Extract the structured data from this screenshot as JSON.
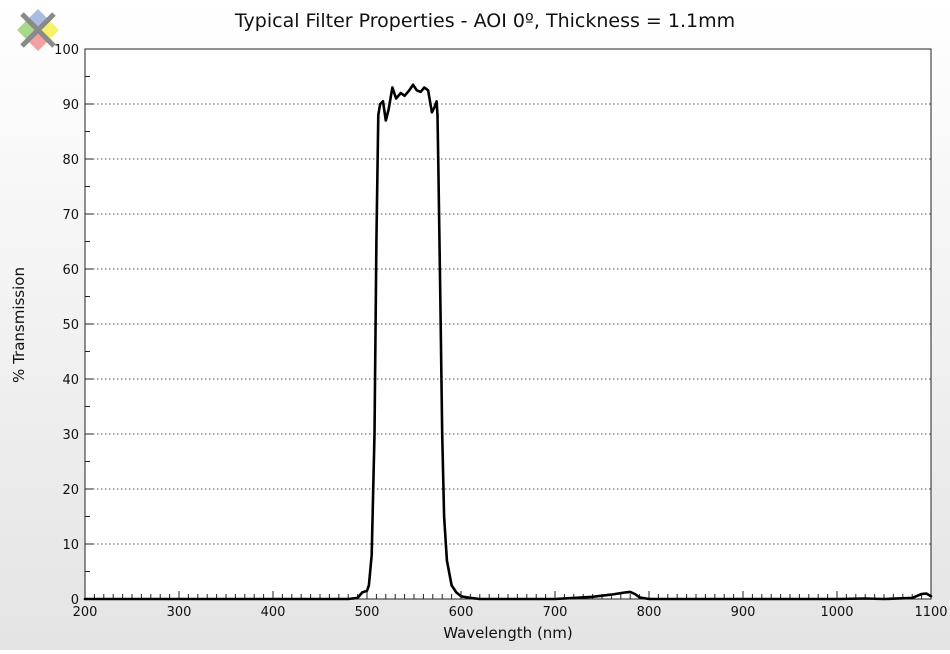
{
  "chart_data": {
    "type": "line",
    "title": "Typical Filter Properties - AOI 0º, Thickness = 1.1mm",
    "xlabel": "Wavelength (nm)",
    "ylabel": "% Transmission",
    "xlim": [
      200,
      1100
    ],
    "ylim": [
      0,
      100
    ],
    "x_ticks": [
      200,
      300,
      400,
      500,
      600,
      700,
      800,
      900,
      1000,
      1100
    ],
    "y_ticks": [
      0,
      10,
      20,
      30,
      40,
      50,
      60,
      70,
      80,
      90,
      100
    ],
    "x_minor_step": 10,
    "y_minor_step": 5,
    "grid": "horizontal-dotted",
    "background": "gradient-white-to-gray",
    "series": [
      {
        "color": "#000000",
        "points": [
          [
            200,
            0
          ],
          [
            480,
            0
          ],
          [
            490,
            0.2
          ],
          [
            495,
            1.2
          ],
          [
            500,
            1.5
          ],
          [
            502,
            2.5
          ],
          [
            505,
            8
          ],
          [
            508,
            30
          ],
          [
            510,
            65
          ],
          [
            512,
            88
          ],
          [
            514,
            90
          ],
          [
            517,
            90.5
          ],
          [
            520,
            87
          ],
          [
            523,
            89
          ],
          [
            527,
            93
          ],
          [
            531,
            91
          ],
          [
            536,
            92
          ],
          [
            540,
            91.5
          ],
          [
            545,
            92.5
          ],
          [
            549,
            93.5
          ],
          [
            553,
            92.5
          ],
          [
            557,
            92.2
          ],
          [
            561,
            93
          ],
          [
            565,
            92.5
          ],
          [
            569,
            88.5
          ],
          [
            572,
            89.5
          ],
          [
            574,
            90.5
          ],
          [
            575,
            88
          ],
          [
            576,
            78
          ],
          [
            578,
            55
          ],
          [
            580,
            30
          ],
          [
            582,
            15
          ],
          [
            585,
            7
          ],
          [
            590,
            2.5
          ],
          [
            595,
            1.2
          ],
          [
            600,
            0.5
          ],
          [
            610,
            0.2
          ],
          [
            620,
            0
          ],
          [
            700,
            0
          ],
          [
            720,
            0.2
          ],
          [
            740,
            0.4
          ],
          [
            760,
            0.8
          ],
          [
            775,
            1.2
          ],
          [
            780,
            1.3
          ],
          [
            785,
            0.9
          ],
          [
            790,
            0.3
          ],
          [
            800,
            0
          ],
          [
            1000,
            0
          ],
          [
            1030,
            0.1
          ],
          [
            1050,
            0
          ],
          [
            1080,
            0.2
          ],
          [
            1090,
            0.9
          ],
          [
            1095,
            1
          ],
          [
            1100,
            0.5
          ]
        ]
      }
    ]
  },
  "logo": {
    "name": "x-logo-icon",
    "colors": [
      "#a8bde0",
      "#f7f06a",
      "#f5a0a0",
      "#a8d88a"
    ]
  }
}
